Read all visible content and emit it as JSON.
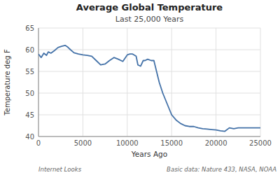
{
  "chart_data": {
    "type": "line",
    "title": "Average Global Temperature",
    "subtitle": "Last 25,000 Years",
    "xlabel": "Years Ago",
    "ylabel": "Temperature deg F",
    "annotations": [
      "Internet Looks",
      "Basic data: Nature 433, NASA, NOAA"
    ],
    "x": [
      0,
      300,
      600,
      900,
      1100,
      1400,
      1800,
      2200,
      2600,
      3000,
      3300,
      3600,
      4000,
      4500,
      5000,
      5500,
      6000,
      6500,
      7000,
      7500,
      8000,
      8500,
      9000,
      9500,
      10000,
      10300,
      10600,
      11000,
      11200,
      11500,
      11800,
      12000,
      12300,
      12700,
      13000,
      13300,
      13600,
      14000,
      14500,
      15000,
      15500,
      16000,
      16500,
      17000,
      17500,
      18000,
      18500,
      19000,
      19500,
      20000,
      20500,
      21000,
      21500,
      22000,
      22500,
      23000,
      23500,
      24000,
      24500,
      25000
    ],
    "values": [
      59.0,
      58.2,
      59.2,
      58.7,
      59.5,
      59.2,
      59.8,
      60.5,
      60.8,
      61.0,
      60.6,
      60.0,
      59.3,
      59.0,
      58.8,
      58.7,
      58.5,
      57.5,
      56.5,
      56.7,
      57.5,
      58.2,
      57.8,
      57.3,
      58.8,
      59.0,
      59.0,
      58.5,
      56.5,
      56.2,
      57.5,
      57.5,
      57.8,
      57.5,
      57.5,
      55.0,
      52.5,
      50.0,
      47.5,
      45.0,
      43.8,
      43.0,
      42.5,
      42.3,
      42.3,
      42.0,
      41.8,
      41.7,
      41.6,
      41.5,
      41.3,
      41.2,
      42.0,
      41.8,
      42.0,
      42.0,
      42.0,
      42.0,
      42.0,
      42.0
    ],
    "color": "#4472a8",
    "xlim": [
      0,
      25000
    ],
    "ylim": [
      40,
      65
    ],
    "xticks": [
      0,
      5000,
      10000,
      15000,
      20000,
      25000
    ],
    "yticks": [
      40,
      45,
      50,
      55,
      60,
      65
    ],
    "grid": true
  }
}
